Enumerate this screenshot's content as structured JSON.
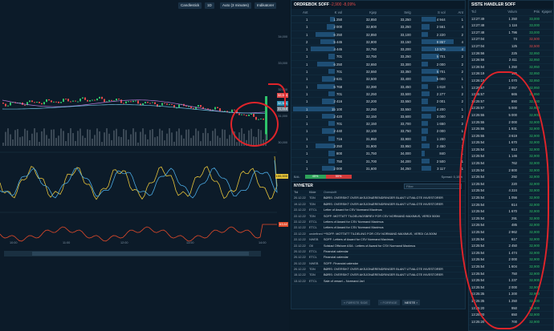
{
  "toolbar": {
    "chart_type": "Candlestick",
    "range": "1D",
    "interval": "Auto (3 minutes)",
    "indicators": "Indikatorer"
  },
  "chart": {
    "y_ticks": [
      "34,000",
      "33,000",
      "32,000",
      "31,000",
      "30,000"
    ],
    "price_tag": "32,000",
    "tag2": "32,561",
    "tag3": "31,418",
    "rsi_tag": "100,000",
    "macd_tag": "63,62",
    "x_ticks": [
      "10:00",
      "11:00",
      "12:00",
      "13:00",
      "14:00",
      "16:00"
    ],
    "colors": {
      "up": "#2ec36a",
      "down": "#e24a4a",
      "ma1": "#b77ad8",
      "ma2": "#6fc0e0",
      "rsi1": "#e6c43a",
      "rsi2": "#4aa8e0",
      "macd": "#e24a2a"
    }
  },
  "orderbook": {
    "title": "ORDREBOK SOFF",
    "change": "-2,900 -8,09%",
    "headers": [
      "Ant",
      "K vol",
      "Kjøp",
      "Selg",
      "S vol",
      "Ant"
    ],
    "rows": [
      [
        "1",
        "1 250",
        "32,850",
        "33,250",
        "4 944",
        "1"
      ],
      [
        "1",
        "2 000",
        "32,800",
        "33,250",
        "2 561",
        "4"
      ],
      [
        "1",
        "6 250",
        "32,850",
        "33,100",
        "2 220",
        "2"
      ],
      [
        "2",
        "5 445",
        "32,800",
        "33,150",
        "9 867",
        "4"
      ],
      [
        "1",
        "4 445",
        "32,750",
        "33,200",
        "13 579",
        "4"
      ],
      [
        "1",
        "701",
        "32,750",
        "33,250",
        "5 701",
        "2"
      ],
      [
        "1",
        "6 250",
        "32,650",
        "33,300",
        "2 000",
        "2"
      ],
      [
        "1",
        "701",
        "32,550",
        "33,350",
        "5 701",
        "2"
      ],
      [
        "1",
        "2 631",
        "32,500",
        "33,400",
        "5 000",
        "1"
      ],
      [
        "1",
        "6 768",
        "32,390",
        "33,450",
        "1 618",
        "1"
      ],
      [
        "1",
        "701",
        "32,250",
        "33,500",
        "2 277",
        "2"
      ],
      [
        "1",
        "2 416",
        "32,200",
        "33,550",
        "2 001",
        "2"
      ],
      [
        "1",
        "15 100",
        "32,250",
        "33,550",
        "4 200",
        "1"
      ],
      [
        "1",
        "2 420",
        "32,150",
        "33,600",
        "3 000",
        "2"
      ],
      [
        "1",
        "701",
        "32,150",
        "33,700",
        "1 650",
        "2"
      ],
      [
        "1",
        "2 440",
        "32,100",
        "33,750",
        "2 000",
        "1"
      ],
      [
        "1",
        "716",
        "31,950",
        "33,900",
        "1 200",
        "1"
      ],
      [
        "1",
        "3 250",
        "31,900",
        "33,950",
        "2 450",
        "2"
      ],
      [
        "1",
        "800",
        "31,750",
        "34,000",
        "840",
        "1"
      ],
      [
        "1",
        "750",
        "31,700",
        "34,200",
        "2 500",
        "1"
      ],
      [
        "1",
        "2 000",
        "31,600",
        "34,250",
        "3 117",
        "1"
      ]
    ],
    "bid_label": "B/A:",
    "bid_pct": "45%",
    "ask_pct": "55%",
    "spread": "Spread: 0,15%"
  },
  "news": {
    "title": "NYHETER",
    "filter_placeholder": "Filter",
    "headers": [
      "Tid",
      "Kilde",
      "Overskrift"
    ],
    "rows": [
      [
        "20.12.22",
        "TDN",
        "BØRS: OVERSIKT OVER AKSJONÆRENDRINGER BLANT UTVALGTE INVESTORER"
      ],
      [
        "19.12.22",
        "TDN",
        "BØRS: OVERSIKT OVER AKSJONÆRENDRINGER BLANT UTVALGTE INVESTORER"
      ],
      [
        "22.12.22",
        "ETCL",
        "Letter of Award for CSV Normand Maximus"
      ],
      [
        "22.12.22",
        "TDN",
        "SOFF: MOTTATT TILDELINGSBREV FOR CSV NORMAND MAXIMUS, VERDI 500M"
      ],
      [
        "22.12.22",
        "ETCL",
        "Letters of Award for CSV Normand Maximus"
      ],
      [
        "22.12.22",
        "ETCL",
        "Letters of Award for CSV Normand Maximus"
      ],
      [
        "22.12.22",
        "undefined",
        "**SOFF: MOTTATT TILDELING FOR CSV NORMAND MAXIMUS, VERDI CA 500M"
      ],
      [
        "22.12.22",
        "NWEB",
        "SOFF: Letters of Award for CSV Normand Maximus"
      ],
      [
        "22.12.22",
        "OII",
        "Solstad Offshore ASA : Letters of Award for CSV Normand Maximus"
      ],
      [
        "20.12.22",
        "ETCL",
        "Financial calendar"
      ],
      [
        "20.12.22",
        "ETCL",
        "Financial calendar"
      ],
      [
        "20.12.22",
        "NWEB",
        "SOFF: Financial calendar"
      ],
      [
        "20.12.22",
        "TDN",
        "BØRS: OVERSIKT OVER AKSJONÆRENDRINGER BLANT UTVALGTE INVESTORER"
      ],
      [
        "15.12.22",
        "TDN",
        "BØRS: OVERSIKT OVER AKSJONÆRENDRINGER BLANT UTVALGTE INVESTORER"
      ],
      [
        "13.12.22",
        "ETCL",
        "Sale of vessel – Normand Jarl"
      ]
    ],
    "first_label": "« FØRSTE SIDE",
    "prev_label": "‹ FORRIGE",
    "next_label": "NESTE ›"
  },
  "trades": {
    "title": "SISTE HANDLER SOFF",
    "headers": [
      "Tid",
      "Volum",
      "Pris",
      "Kjøper"
    ],
    "rows": [
      [
        "13:27:49",
        "1 250",
        "33,000",
        "up"
      ],
      [
        "13:27:48",
        "1 116",
        "33,000",
        "up"
      ],
      [
        "13:27:48",
        "1 796",
        "33,000",
        "up"
      ],
      [
        "13:27:04",
        "74",
        "32,500",
        "dn"
      ],
      [
        "13:27:04",
        "125",
        "32,500",
        "dn"
      ],
      [
        "13:26:56",
        "225",
        "32,950",
        "up"
      ],
      [
        "13:26:56",
        "2 411",
        "32,950",
        "up"
      ],
      [
        "13:26:54",
        "1 250",
        "32,950",
        "up"
      ],
      [
        "13:26:19",
        "165",
        "32,950",
        "up"
      ],
      [
        "13:26:19",
        "1 070",
        "32,950",
        "up"
      ],
      [
        "13:25:57",
        "2 057",
        "32,950",
        "up"
      ],
      [
        "13:25:57",
        "665",
        "32,950",
        "up"
      ],
      [
        "13:25:57",
        "890",
        "32,900",
        "up"
      ],
      [
        "13:25:57",
        "5 000",
        "32,900",
        "up"
      ],
      [
        "13:25:55",
        "5 000",
        "32,900",
        "up"
      ],
      [
        "13:25:55",
        "2 000",
        "32,900",
        "up"
      ],
      [
        "13:25:55",
        "1 931",
        "32,900",
        "up"
      ],
      [
        "13:25:55",
        "3 619",
        "32,900",
        "up"
      ],
      [
        "13:25:54",
        "1 670",
        "32,900",
        "up"
      ],
      [
        "13:25:54",
        "613",
        "32,900",
        "up"
      ],
      [
        "13:25:54",
        "1 146",
        "32,900",
        "up"
      ],
      [
        "13:25:54",
        "762",
        "32,900",
        "up"
      ],
      [
        "13:25:54",
        "2 800",
        "32,900",
        "up"
      ],
      [
        "13:25:54",
        "292",
        "32,900",
        "up"
      ],
      [
        "13:25:54",
        "220",
        "32,900",
        "up"
      ],
      [
        "13:25:54",
        "4 224",
        "32,900",
        "up"
      ],
      [
        "13:25:54",
        "1 056",
        "32,900",
        "up"
      ],
      [
        "13:25:54",
        "614",
        "32,900",
        "up"
      ],
      [
        "13:25:54",
        "1 670",
        "32,900",
        "up"
      ],
      [
        "13:25:54",
        "291",
        "32,900",
        "up"
      ],
      [
        "13:25:54",
        "485",
        "32,900",
        "up"
      ],
      [
        "13:25:54",
        "2 962",
        "32,900",
        "up"
      ],
      [
        "13:25:54",
        "617",
        "32,900",
        "up"
      ],
      [
        "13:25:54",
        "2 450",
        "32,900",
        "up"
      ],
      [
        "13:25:54",
        "1 474",
        "32,900",
        "up"
      ],
      [
        "13:25:54",
        "2 000",
        "32,900",
        "up"
      ],
      [
        "13:25:54",
        "1 604",
        "32,900",
        "up"
      ],
      [
        "13:25:54",
        "750",
        "32,900",
        "up"
      ],
      [
        "13:25:54",
        "1 237",
        "32,900",
        "up"
      ],
      [
        "13:25:54",
        "2 000",
        "32,900",
        "up"
      ],
      [
        "13:25:35",
        "1 200",
        "32,900",
        "up"
      ],
      [
        "13:25:35",
        "1 250",
        "32,900",
        "up"
      ],
      [
        "13:25:20",
        "950",
        "32,900",
        "up"
      ],
      [
        "13:25:20",
        "650",
        "32,900",
        "up"
      ],
      [
        "13:25:20",
        "700",
        "32,900",
        "up"
      ]
    ]
  }
}
